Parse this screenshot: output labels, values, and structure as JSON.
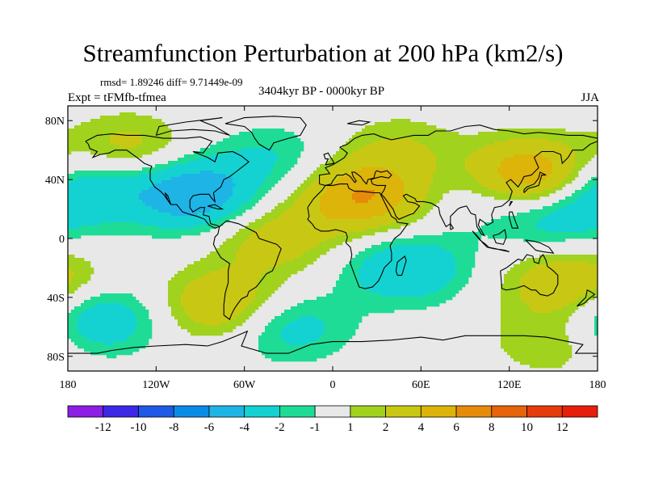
{
  "title": "Streamfunction Perturbation at 200 hPa (km2/s)",
  "stats": "rmsd= 1.89246  diff= 9.71449e-09",
  "experiment": "Expt = tFMfb-tfmea",
  "period": "3404kyr BP - 0000kyr BP",
  "season": "JJA",
  "colors": {
    "background": "#e8e8e8",
    "coast": "#000000"
  },
  "lat_ticks": [
    "80N",
    "40N",
    "0",
    "40S",
    "80S"
  ],
  "lon_ticks": [
    "180",
    "120W",
    "60W",
    "0",
    "60E",
    "120E",
    "180"
  ],
  "colorbar": {
    "colors": [
      "#8c1ee6",
      "#3c28e6",
      "#1e5ae6",
      "#0a8ce6",
      "#1eb4e6",
      "#14d2d2",
      "#1edc96",
      "#e8e8e8",
      "#a0d21e",
      "#c8c814",
      "#dcb40a",
      "#e68c0a",
      "#e6640a",
      "#e63c0a",
      "#e61e0a"
    ],
    "labels": [
      "-12",
      "-10",
      "-8",
      "-6",
      "-4",
      "-2",
      "-1",
      "1",
      "2",
      "4",
      "6",
      "8",
      "10",
      "12"
    ]
  },
  "map_data": {
    "type": "contour-map",
    "variable": "streamfunction perturbation",
    "level_hPa": 200,
    "units": "km2/s",
    "projection": "cylindrical equidistant",
    "lon_range": [
      -180,
      180
    ],
    "lat_range": [
      -90,
      90
    ],
    "contour_levels": [
      -12,
      -10,
      -8,
      -6,
      -4,
      -2,
      -1,
      1,
      2,
      4,
      6,
      8,
      10,
      12
    ],
    "features": [
      {
        "name": "north-america-low",
        "lon": -95,
        "lat": 30,
        "value": -6
      },
      {
        "name": "north-pacific-low",
        "lon": -170,
        "lat": 35,
        "value": -4
      },
      {
        "name": "west-pacific-low",
        "lon": 150,
        "lat": 15,
        "value": -3
      },
      {
        "name": "southern-ocean-low",
        "lon": -160,
        "lat": -55,
        "value": -4
      },
      {
        "name": "south-indian-low",
        "lon": 50,
        "lat": -20,
        "value": -4
      },
      {
        "name": "south-atlantic-low",
        "lon": -30,
        "lat": -60,
        "value": -3
      },
      {
        "name": "north-atlantic-low",
        "lon": -40,
        "lat": 55,
        "value": -2
      },
      {
        "name": "africa-middle-east-high",
        "lon": 20,
        "lat": 28,
        "value": 6
      },
      {
        "name": "east-asia-high",
        "lon": 135,
        "lat": 42,
        "value": 7
      },
      {
        "name": "south-america-high",
        "lon": -75,
        "lat": -45,
        "value": 4
      },
      {
        "name": "equatorial-atlantic-high",
        "lon": -40,
        "lat": 0,
        "value": 3
      },
      {
        "name": "australia-high",
        "lon": 160,
        "lat": -30,
        "value": 4
      },
      {
        "name": "west-canada-high",
        "lon": -140,
        "lat": 60,
        "value": 3
      },
      {
        "name": "north-eurasia-high",
        "lon": 45,
        "lat": 60,
        "value": 2
      },
      {
        "name": "east-asia-low",
        "lon": 105,
        "lat": 30,
        "value": -1.5
      },
      {
        "name": "southern-ocean-high",
        "lon": 150,
        "lat": -70,
        "value": 2
      }
    ]
  }
}
